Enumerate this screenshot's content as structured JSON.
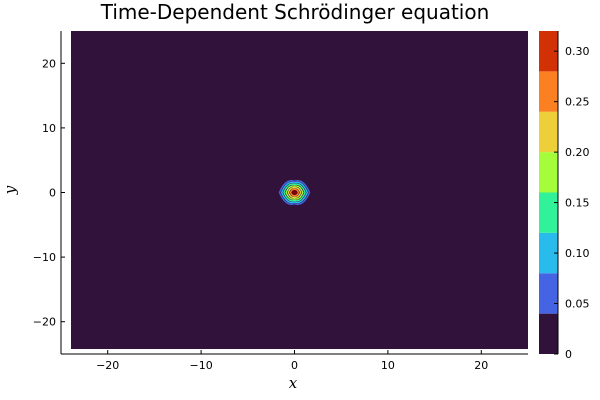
{
  "chart_data": {
    "type": "heatmap",
    "subtype": "filled-contour",
    "title": "Time-Dependent Schrödinger equation",
    "xlabel": "x",
    "ylabel": "y",
    "xlim": [
      -25,
      25
    ],
    "ylim": [
      -25,
      25
    ],
    "xticks": [
      -20,
      -10,
      0,
      10,
      20
    ],
    "yticks": [
      -20,
      -10,
      0,
      10,
      20
    ],
    "grid": false,
    "colorbar": {
      "range": [
        0,
        0.32
      ],
      "ticks": [
        0,
        0.05,
        0.1,
        0.15,
        0.2,
        0.25,
        0.3
      ],
      "tick_labels": [
        "0",
        "0.05",
        "0.10",
        "0.15",
        "0.20",
        "0.25",
        "0.30"
      ],
      "levels": [
        0,
        0.04,
        0.08,
        0.12,
        0.16,
        0.2,
        0.24,
        0.28,
        0.32
      ],
      "colors": [
        "#30123b",
        "#4464e3",
        "#29bbec",
        "#31f199",
        "#a4fc3b",
        "#edcf39",
        "#fb8022",
        "#d23105",
        "#7a0403"
      ]
    },
    "feature": {
      "shape": "localized peak",
      "center": [
        0,
        0
      ],
      "peak_value": 0.32,
      "background_value": 0
    }
  }
}
